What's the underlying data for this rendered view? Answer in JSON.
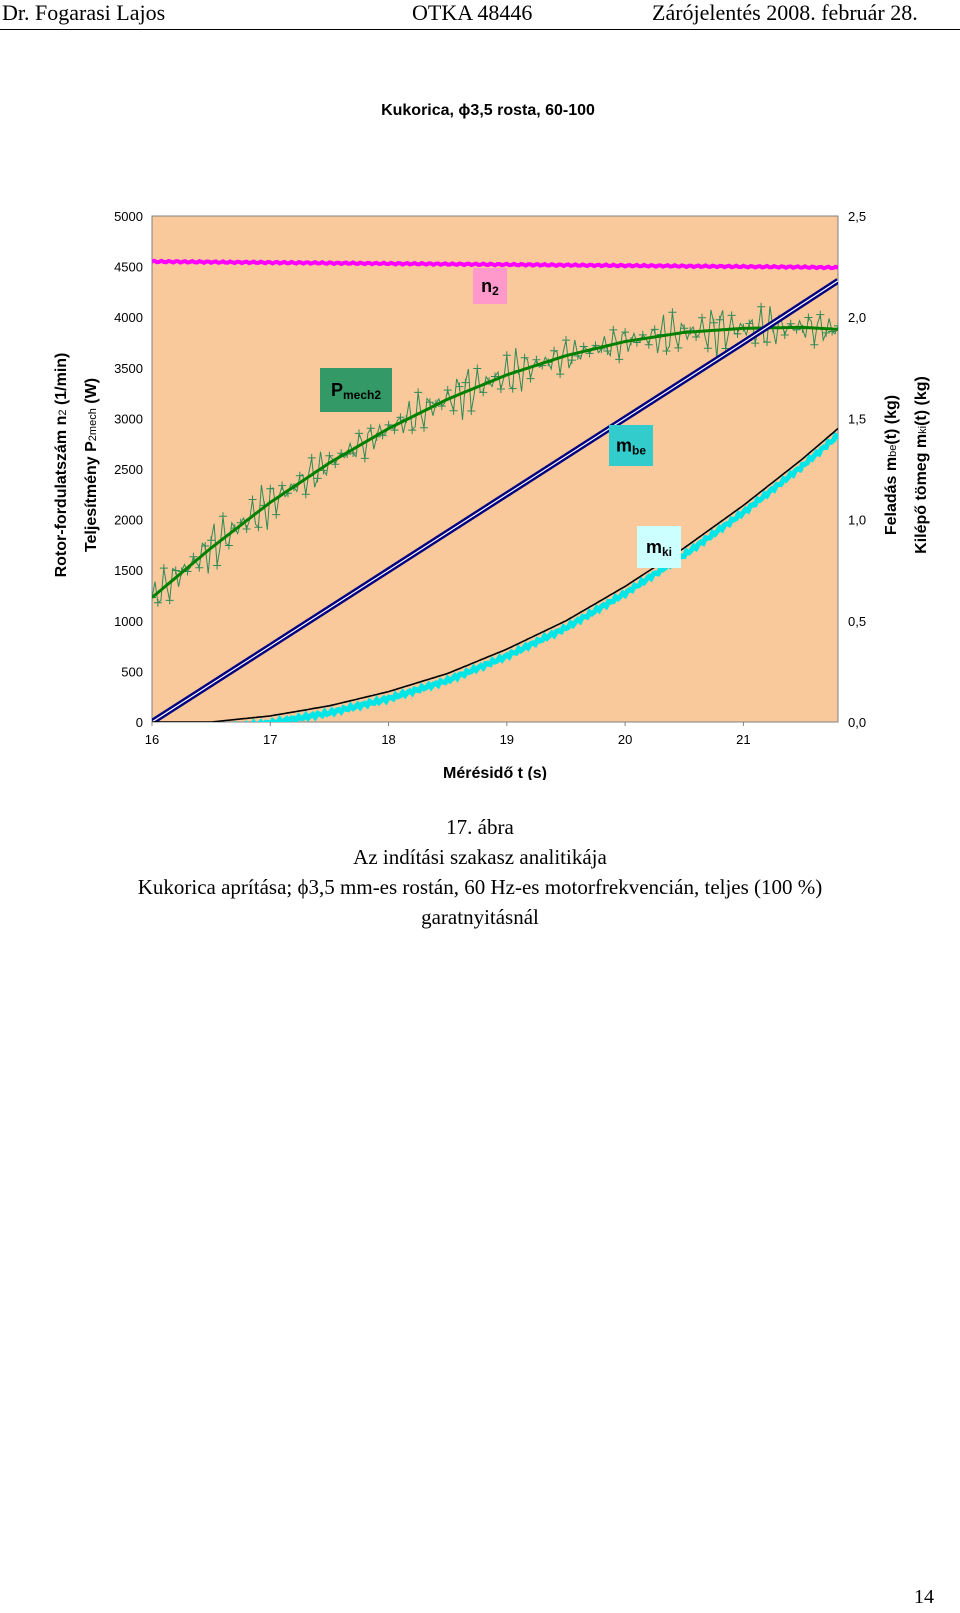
{
  "header": {
    "author": "Dr. Fogarasi Lajos",
    "project": "OTKA 48446",
    "report": "Zárójelentés 2008. február 28."
  },
  "chart_data": {
    "type": "line",
    "title": "Kukorica, ϕ3,5 rosta, 60-100",
    "xlabel": "Mérésidő t (s)",
    "x_ticks": [
      16,
      17,
      18,
      19,
      20,
      21
    ],
    "xlim": [
      16,
      21.8
    ],
    "ylabel_left_1": "Rotor-fordulatszám n",
    "ylabel_left_1_sub": "2",
    "ylabel_left_1_unit": " (1/min)",
    "ylabel_left_2": "Teljesítmény P",
    "ylabel_left_2_sub": "2mech",
    "ylabel_left_2_unit": " (W)",
    "ylim_left": [
      0,
      5000
    ],
    "y_ticks_left": [
      "0",
      "500",
      "1000",
      "1500",
      "2000",
      "2500",
      "3000",
      "3500",
      "4000",
      "4500",
      "5000"
    ],
    "ylabel_right_1": "Feladás m",
    "ylabel_right_1_sub": "be",
    "ylabel_right_1_unit": "(t) (kg)",
    "ylabel_right_2": "Kilépő tömeg m",
    "ylabel_right_2_sub": "ki",
    "ylabel_right_2_unit": "(t) (kg)",
    "ylim_right": [
      0,
      2.5
    ],
    "y_ticks_right": [
      "0,0",
      "0,5",
      "1,0",
      "1,5",
      "2,0",
      "2,5"
    ],
    "plot_background": "#f9c89b",
    "series": [
      {
        "name": "n",
        "name_sub": "2",
        "axis": "left",
        "color": "#ff00ff",
        "label_bg": "#ff99cc",
        "x": [
          16,
          16.5,
          17,
          17.5,
          18,
          18.5,
          19,
          19.5,
          20,
          20.5,
          21,
          21.5,
          21.8
        ],
        "y": [
          4550,
          4545,
          4540,
          4535,
          4530,
          4525,
          4520,
          4515,
          4510,
          4505,
          4500,
          4495,
          4490
        ]
      },
      {
        "name": "P",
        "name_sub": "mech2",
        "axis": "left",
        "color": "#008000",
        "noisy_color": "#2e8b57",
        "label_bg": "#339966",
        "x": [
          16,
          16.5,
          17,
          17.5,
          18,
          18.5,
          19,
          19.5,
          20,
          20.5,
          21,
          21.5,
          21.8
        ],
        "y": [
          1230,
          1720,
          2170,
          2560,
          2900,
          3190,
          3430,
          3620,
          3760,
          3850,
          3890,
          3900,
          3880
        ]
      },
      {
        "name": "m",
        "name_sub": "be",
        "axis": "right",
        "color": "#000080",
        "label_bg": "#33cccc",
        "x": [
          16,
          17,
          18,
          19,
          20,
          21,
          21.8
        ],
        "y": [
          0.0,
          0.375,
          0.75,
          1.125,
          1.5,
          1.875,
          2.18
        ]
      },
      {
        "name": "m",
        "name_sub": "ki",
        "axis": "right",
        "color": "#000000",
        "noisy_color": "#00e5e5",
        "label_bg": "#ccffff",
        "x": [
          16,
          16.5,
          17,
          17.5,
          18,
          18.5,
          19,
          19.5,
          20,
          20.5,
          21,
          21.5,
          21.8
        ],
        "y": [
          0.0,
          0.0,
          0.03,
          0.08,
          0.15,
          0.24,
          0.36,
          0.5,
          0.67,
          0.86,
          1.07,
          1.3,
          1.45
        ]
      }
    ]
  },
  "caption": {
    "figure_no": "17. ábra",
    "title": "Az indítási szakasz analitikája",
    "line3": "Kukorica aprítása; ϕ3,5 mm-es rostán, 60 Hz-es motorfrekvencián, teljes (100 %)",
    "line4": "garatnyitásnál"
  },
  "page_number": "14"
}
